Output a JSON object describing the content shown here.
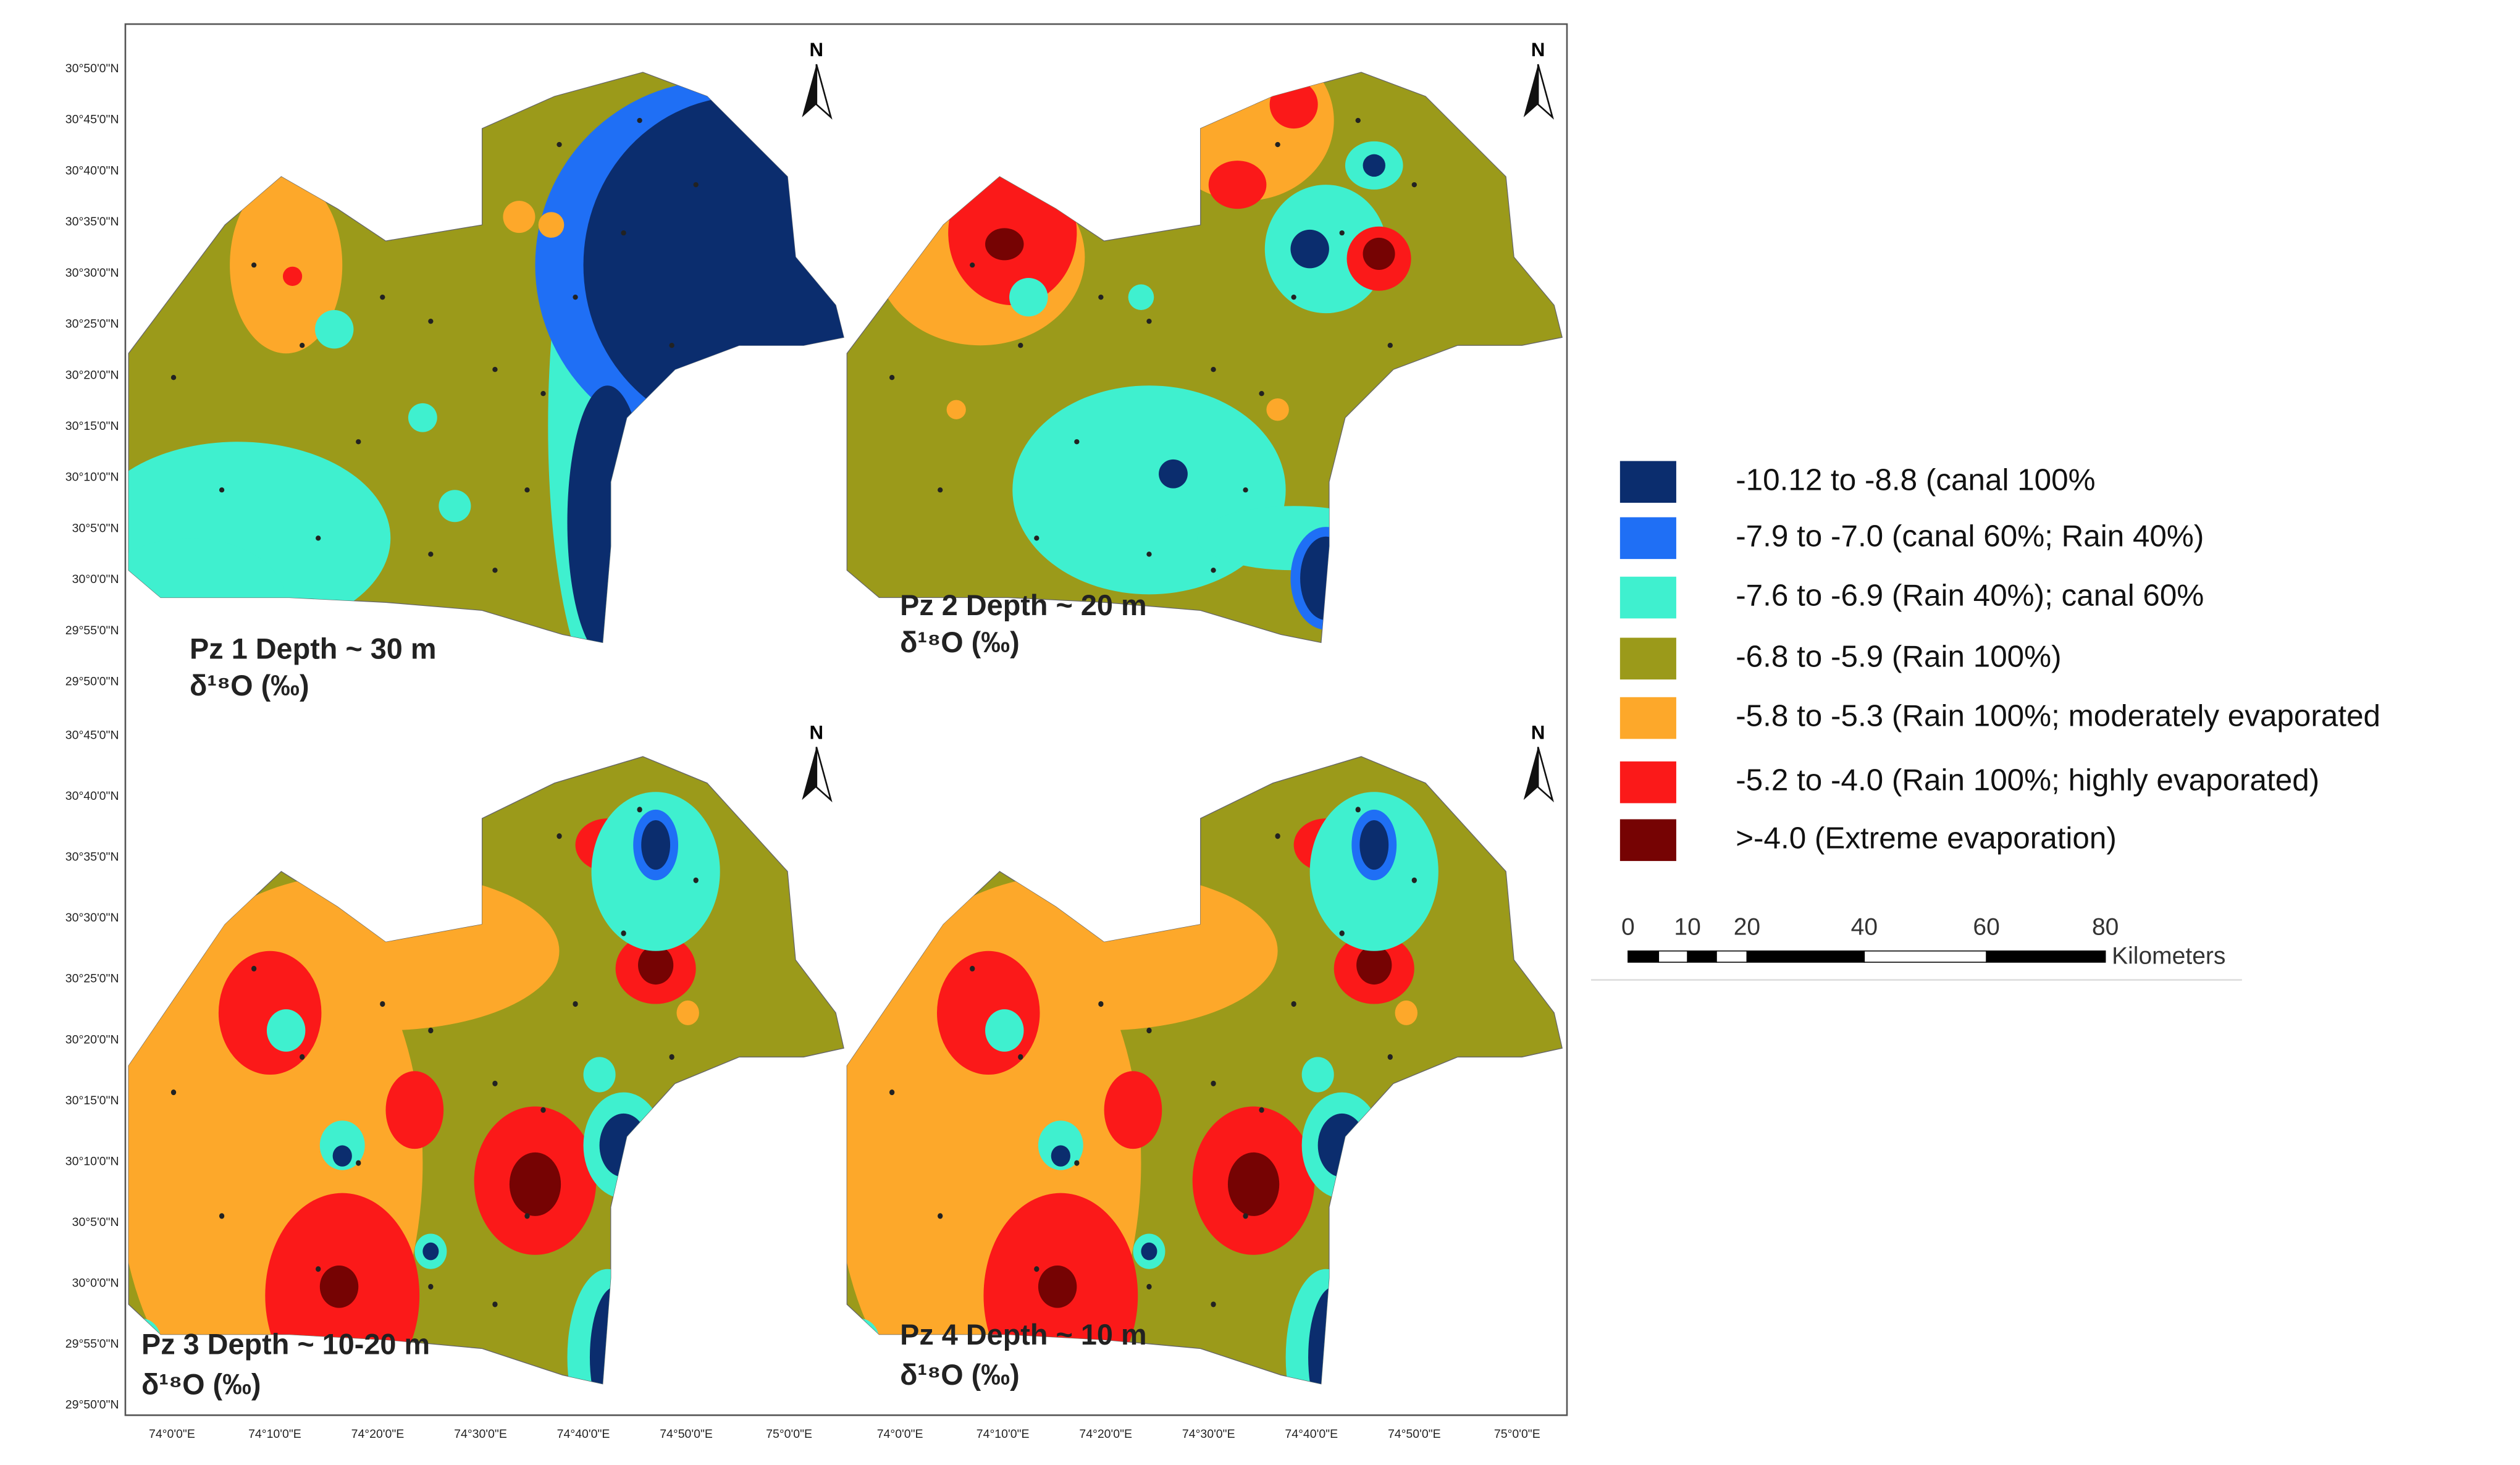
{
  "panels": [
    {
      "title": "Pz 1 Depth ~ 30 m",
      "subtitle": "δ¹⁸O (‰)"
    },
    {
      "title": "Pz 2 Depth ~ 20 m",
      "subtitle": "δ¹⁸O (‰)"
    },
    {
      "title": "Pz 3 Depth ~ 10-20  m",
      "subtitle": "δ¹⁸O (‰)"
    },
    {
      "title": "Pz 4 Depth ~ 10 m",
      "subtitle": "δ¹⁸O (‰)"
    }
  ],
  "north": "N",
  "lat_labels_top": [
    "30°50'0\"N",
    "30°45'0\"N",
    "30°40'0\"N",
    "30°35'0\"N",
    "30°30'0\"N",
    "30°25'0\"N",
    "30°20'0\"N",
    "30°15'0\"N",
    "30°10'0\"N",
    "30°5'0\"N",
    "30°0'0\"N",
    "29°55'0\"N",
    "29°50'0\"N"
  ],
  "lat_labels_bottom": [
    "30°45'0\"N",
    "30°40'0\"N",
    "30°35'0\"N",
    "30°30'0\"N",
    "30°25'0\"N",
    "30°20'0\"N",
    "30°15'0\"N",
    "30°10'0\"N",
    "30°5'0\"N",
    "30°0'0\"N",
    "29°55'0\"N",
    "29°50'0\"N"
  ],
  "lon_labels": [
    "74°0'0\"E",
    "74°10'0\"E",
    "74°20'0\"E",
    "74°30'0\"E",
    "74°40'0\"E",
    "74°50'0\"E",
    "75°0'0\"E"
  ],
  "legend": [
    {
      "label": "-10.12 to -8.8 (canal 100%",
      "color": "#0b2d6e"
    },
    {
      "label": "-7.9 to -7.0 (canal 60%; Rain 40%)",
      "color": "#1f6ff5"
    },
    {
      "label": "-7.6 to -6.9 (Rain 40%); canal 60%",
      "color": "#3ff0cf"
    },
    {
      "label": "-6.8 to -5.9 (Rain 100%)",
      "color": "#9b9a1a"
    },
    {
      "label": "-5.8 to -5.3 (Rain 100%; moderately evaporated",
      "color": "#fda82a"
    },
    {
      "label": "-5.2 to -4.0 (Rain 100%; highly evaporated)",
      "color": "#fb1919"
    },
    {
      "label": ">-4.0 (Extreme evaporation)",
      "color": "#760303"
    }
  ],
  "scale_bar": {
    "ticks": [
      "0",
      "10",
      "20",
      "40",
      "60",
      "80"
    ],
    "unit": "Kilometers"
  }
}
